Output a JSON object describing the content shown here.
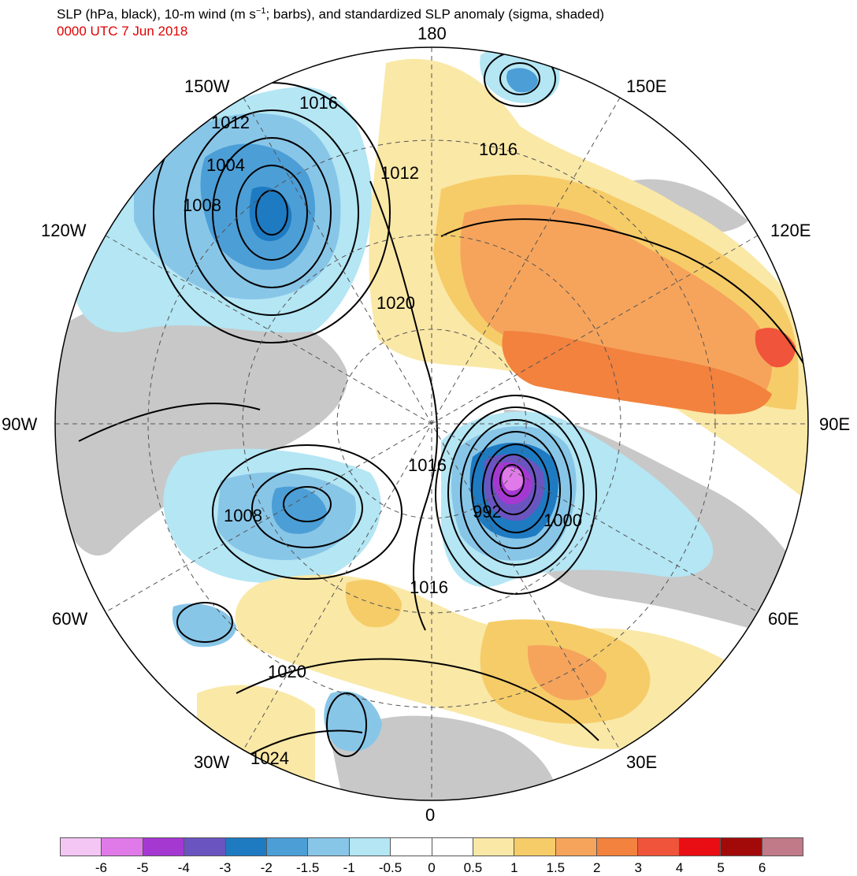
{
  "header": {
    "title_main": "SLP (hPa, black), 10-m wind (m s",
    "title_sup": "−1",
    "title_rest": "; barbs), and standardized SLP anomaly (sigma, shaded)",
    "datetime": "0000 UTC 7 Jun 2018"
  },
  "map": {
    "projection": "north-polar-stereographic",
    "longitude_labels": [
      "180",
      "150E",
      "120E",
      "90E",
      "60E",
      "30E",
      "0",
      "30W",
      "60W",
      "90W",
      "120W",
      "150W"
    ],
    "isobar_labels": [
      "1016",
      "1012",
      "1004",
      "1008",
      "1016",
      "1012",
      "1020",
      "1016",
      "992",
      "1000",
      "1008",
      "1016",
      "1020",
      "1024"
    ],
    "anomaly_colors": {
      "grey_land": "#c8c8c8",
      "neg_6": "#f4c6f4",
      "neg_5": "#e07ae8",
      "neg_4": "#a638d2",
      "neg_3": "#6a55c0",
      "neg_2": "#1e7bc2",
      "neg_1_5": "#4c9ed6",
      "neg_1": "#88c6e8",
      "neg_0_5": "#b4e6f4",
      "pos_0_5": "#fae8a6",
      "pos_1": "#f6cc68",
      "pos_1_5": "#f6a45c",
      "pos_2": "#f2823e",
      "pos_3": "#f0543a",
      "pos_4": "#e80e14",
      "pos_5": "#a20a0a",
      "pos_6": "#c07a88"
    }
  },
  "colorbar": {
    "labels": [
      "-6",
      "-5",
      "-4",
      "-3",
      "-2",
      "-1.5",
      "-1",
      "-0.5",
      "0",
      "0.5",
      "1",
      "1.5",
      "2",
      "3",
      "4",
      "5",
      "6"
    ],
    "colors": [
      "#f4c6f4",
      "#e07ae8",
      "#a638d2",
      "#6a55c0",
      "#1e7bc2",
      "#4c9ed6",
      "#88c6e8",
      "#b4e6f4",
      "#ffffff",
      "#ffffff",
      "#fae8a6",
      "#f6cc68",
      "#f6a45c",
      "#f2823e",
      "#f0543a",
      "#e80e14",
      "#a20a0a",
      "#c07a88"
    ]
  }
}
